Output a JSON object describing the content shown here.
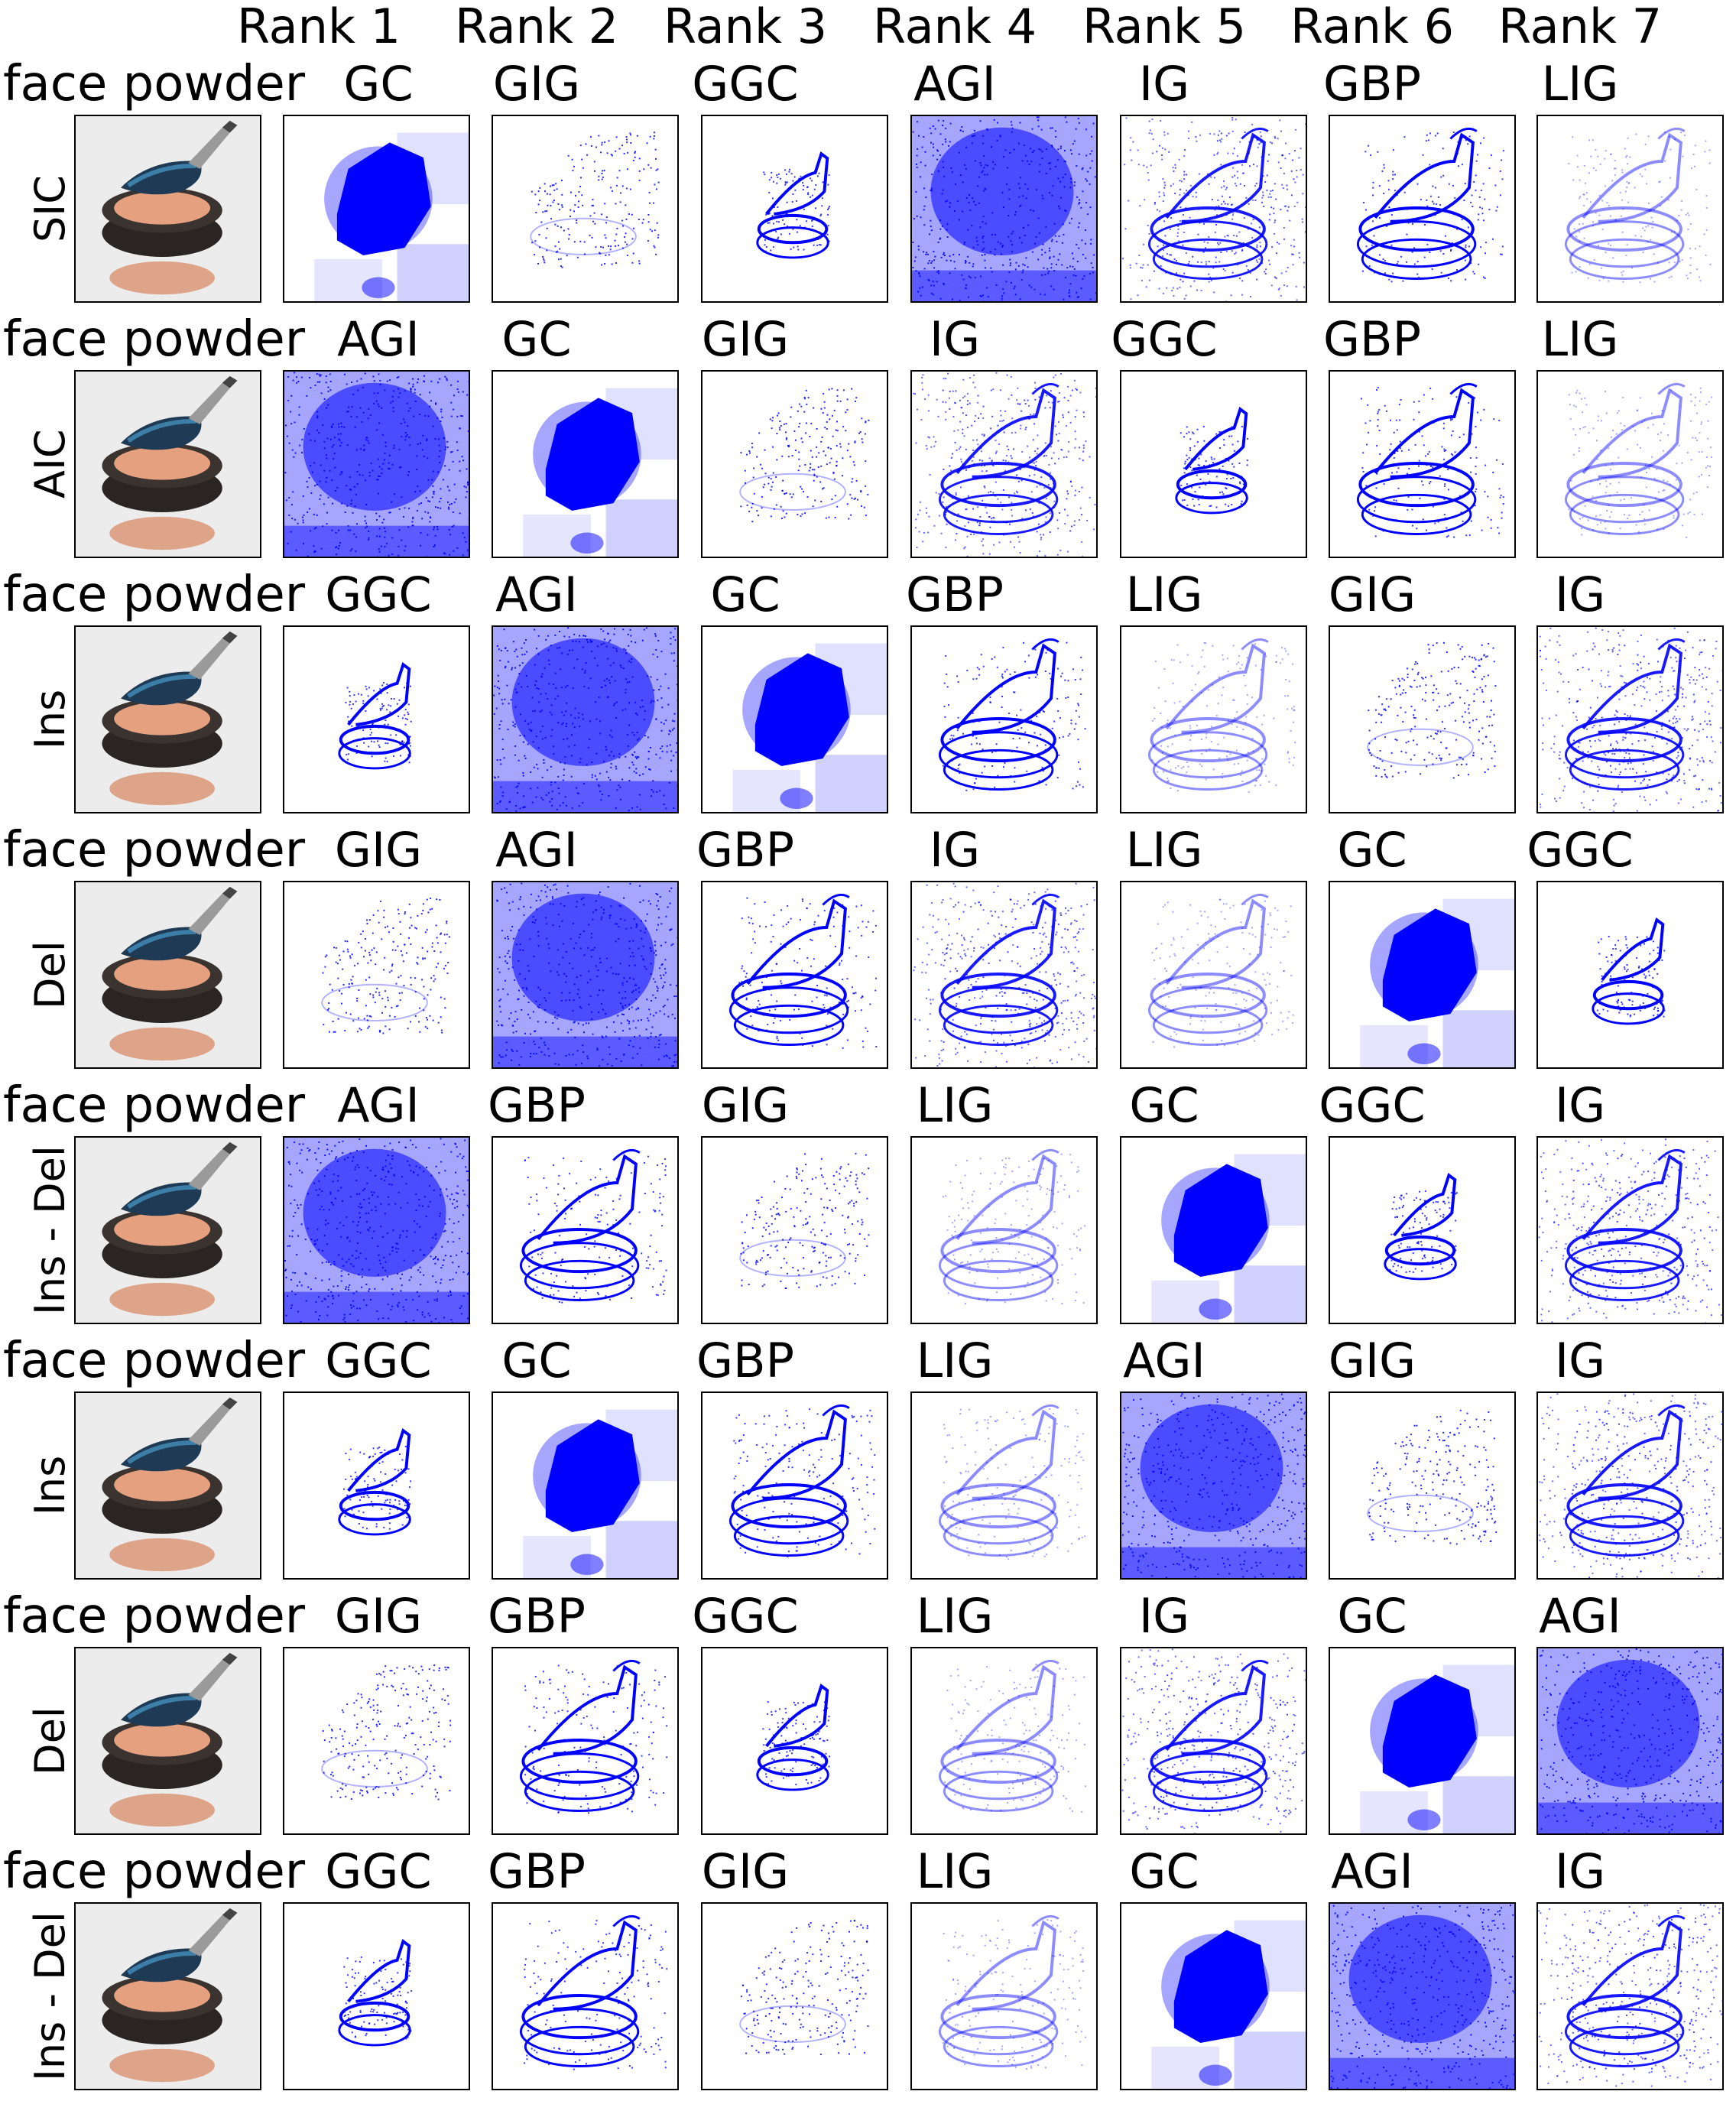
{
  "title_word": "face powder",
  "rank_headers": [
    "Rank 1",
    "Rank 2",
    "Rank 3",
    "Rank 4",
    "Rank 5",
    "Rank 6",
    "Rank 7"
  ],
  "colors": {
    "saliency": "#0000ff",
    "frame": "#000000"
  },
  "rows": [
    {
      "label": "SIC",
      "title": "face powder",
      "methods": [
        "GC",
        "GIG",
        "GGC",
        "AGI",
        "IG",
        "GBP",
        "LIG"
      ]
    },
    {
      "label": "AIC",
      "title": "face powder",
      "methods": [
        "AGI",
        "GC",
        "GIG",
        "IG",
        "GGC",
        "GBP",
        "LIG"
      ]
    },
    {
      "label": "Ins",
      "title": "face powder",
      "methods": [
        "GGC",
        "AGI",
        "GC",
        "GBP",
        "LIG",
        "GIG",
        "IG"
      ]
    },
    {
      "label": "Del",
      "title": "face powder",
      "methods": [
        "GIG",
        "AGI",
        "GBP",
        "IG",
        "LIG",
        "GC",
        "GGC"
      ]
    },
    {
      "label": "Ins - Del",
      "title": "face powder",
      "methods": [
        "AGI",
        "GBP",
        "GIG",
        "LIG",
        "GC",
        "GGC",
        "IG"
      ]
    },
    {
      "label": "Ins",
      "title": "face powder",
      "methods": [
        "GGC",
        "GC",
        "GBP",
        "LIG",
        "AGI",
        "GIG",
        "IG"
      ]
    },
    {
      "label": "Del",
      "title": "face powder",
      "methods": [
        "GIG",
        "GBP",
        "GGC",
        "LIG",
        "IG",
        "GC",
        "AGI"
      ]
    },
    {
      "label": "Ins - Del",
      "title": "face powder",
      "methods": [
        "GGC",
        "GBP",
        "GIG",
        "LIG",
        "GC",
        "AGI",
        "IG"
      ]
    }
  ]
}
